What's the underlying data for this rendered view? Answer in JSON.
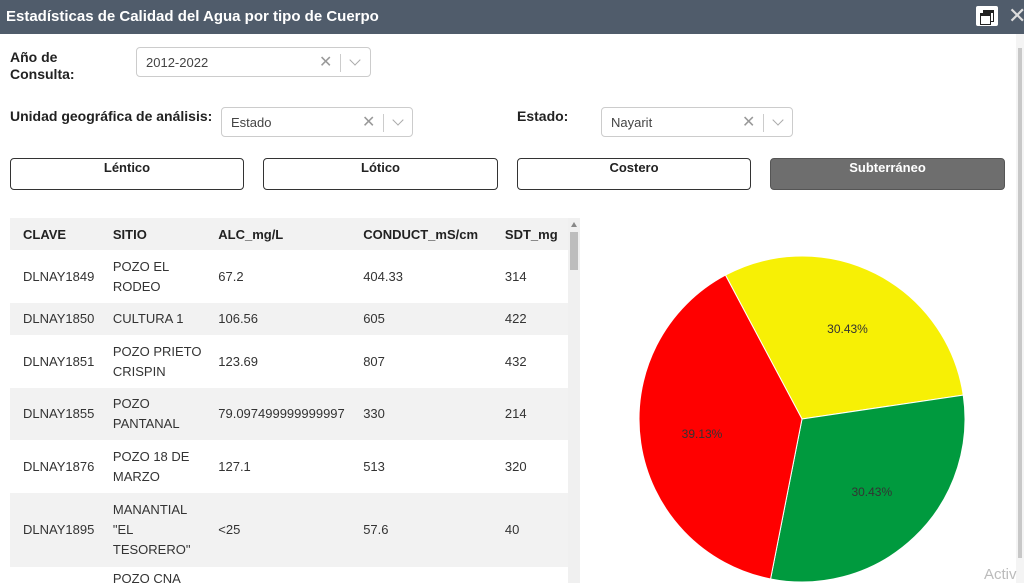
{
  "window": {
    "title": "Estadísticas de Calidad del Agua por tipo de Cuerpo",
    "restore_icon": "restore-window-icon",
    "close_label": "✕"
  },
  "filters": {
    "year_label_line1": "Año de",
    "year_label_line2": "Consulta:",
    "year_value": "2012-2022",
    "unit_label": "Unidad geográfica de análisis:",
    "unit_value": "Estado",
    "state_label": "Estado:",
    "state_value": "Nayarit",
    "clear_symbol": "✕"
  },
  "tabs": [
    {
      "label": "Léntico",
      "active": false
    },
    {
      "label": "Lótico",
      "active": false
    },
    {
      "label": "Costero",
      "active": false
    },
    {
      "label": "Subterráneo",
      "active": true
    }
  ],
  "table": {
    "headers": [
      "CLAVE",
      "SITIO",
      "ALC_mg/L",
      "CONDUCT_mS/cm",
      "SDT_mg"
    ],
    "rows": [
      {
        "clave": "DLNAY1849",
        "sitio1": "POZO EL",
        "sitio2": "RODEO",
        "sitio3": "",
        "alc": "67.2",
        "cond": "404.33",
        "sdt": "314"
      },
      {
        "clave": "DLNAY1850",
        "sitio1": "CULTURA 1",
        "sitio2": "",
        "sitio3": "",
        "alc": "106.56",
        "cond": "605",
        "sdt": "422"
      },
      {
        "clave": "DLNAY1851",
        "sitio1": "POZO PRIETO",
        "sitio2": "CRISPIN",
        "sitio3": "",
        "alc": "123.69",
        "cond": "807",
        "sdt": "432"
      },
      {
        "clave": "DLNAY1855",
        "sitio1": "POZO",
        "sitio2": "PANTANAL",
        "sitio3": "",
        "alc": "79.097499999999997",
        "cond": "330",
        "sdt": "214"
      },
      {
        "clave": "DLNAY1876",
        "sitio1": "POZO 18 DE",
        "sitio2": "MARZO",
        "sitio3": "",
        "alc": "127.1",
        "cond": "513",
        "sdt": "320"
      },
      {
        "clave": "DLNAY1895",
        "sitio1": "MANANTIAL",
        "sitio2": "\"EL",
        "sitio3": "TESORERO\"",
        "alc": "<25",
        "cond": "57.6",
        "sdt": "40"
      },
      {
        "clave": "",
        "sitio1": "POZO CNA",
        "sitio2": "",
        "sitio3": "",
        "alc": "",
        "cond": "",
        "sdt": ""
      }
    ]
  },
  "watermark": "Activ",
  "chart_data": {
    "type": "pie",
    "slices": [
      {
        "label": "30.43%",
        "value": 30.43,
        "color": "#f7f005"
      },
      {
        "label": "30.43%",
        "value": 30.43,
        "color": "#009a3e"
      },
      {
        "label": "39.13%",
        "value": 39.13,
        "color": "#ff0000"
      }
    ],
    "title": "",
    "legend": "none"
  }
}
